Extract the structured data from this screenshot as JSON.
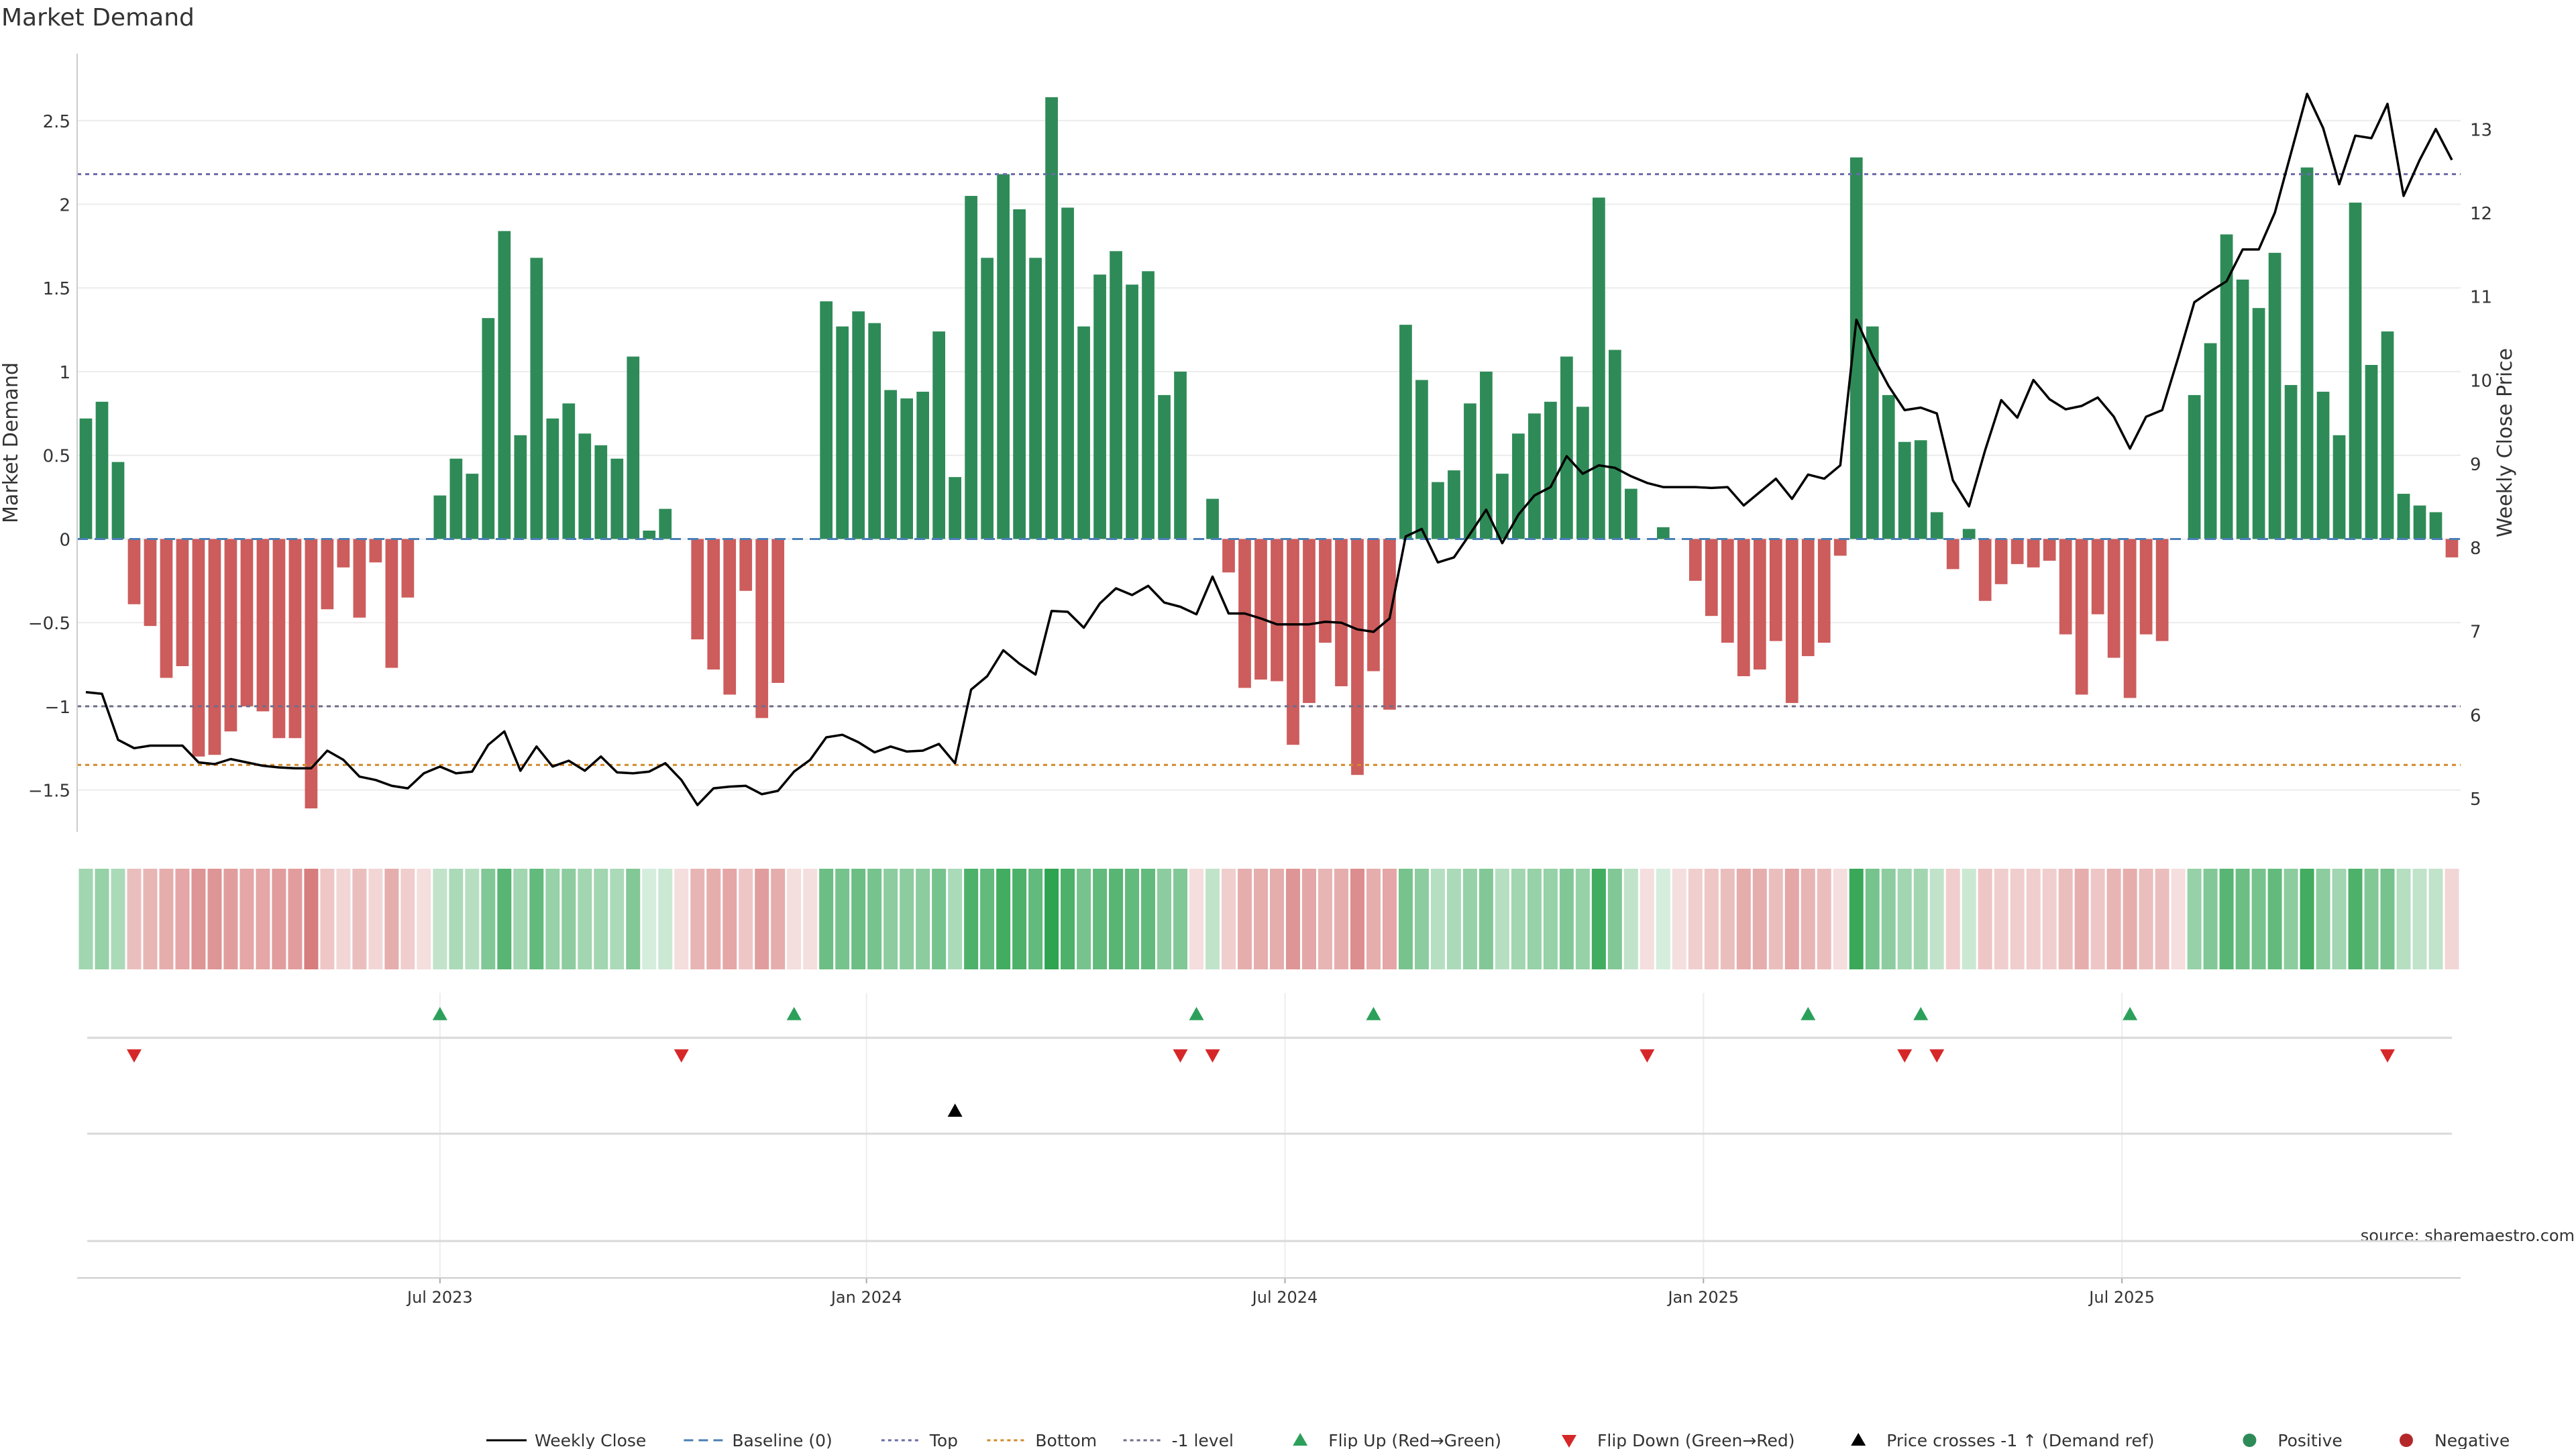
{
  "chart_data": {
    "type": "bar",
    "title": "Market Demand",
    "ylabel_left": "Market Demand",
    "ylabel_right": "Weekly Close Price",
    "ylim_left": [
      -1.75,
      2.9
    ],
    "ylim_right": [
      4.6,
      13.9
    ],
    "yticks_left": [
      "2.5",
      "2",
      "1.5",
      "1",
      "0.5",
      "0",
      "−0.5",
      "−1",
      "−1.5"
    ],
    "yticks_left_values": [
      2.5,
      2,
      1.5,
      1,
      0.5,
      0,
      -0.5,
      -1,
      -1.5
    ],
    "yticks_right": [
      "13",
      "12",
      "11",
      "10",
      "9",
      "8",
      "7",
      "6",
      "5"
    ],
    "yticks_right_values": [
      13,
      12,
      11,
      10,
      9,
      8,
      7,
      6,
      5
    ],
    "reference_lines": {
      "top": 2.18,
      "bottom": -1.35,
      "minus_one": -1.0
    },
    "x_ticks": [
      {
        "label": "Jul 2023",
        "index": 22
      },
      {
        "label": "Jan 2024",
        "index": 48.5
      },
      {
        "label": "Jul 2024",
        "index": 74.5
      },
      {
        "label": "Jan 2025",
        "index": 100.5
      },
      {
        "label": "Jul 2025",
        "index": 126.5
      }
    ],
    "demand": [
      0.72,
      0.82,
      0.46,
      -0.39,
      -0.52,
      -0.83,
      -0.76,
      -1.3,
      -1.29,
      -1.15,
      -1.0,
      -1.03,
      -1.19,
      -1.19,
      -1.61,
      -0.42,
      -0.17,
      -0.47,
      -0.14,
      -0.77,
      -0.35,
      0,
      0.26,
      0.48,
      0.39,
      1.32,
      1.84,
      0.62,
      1.68,
      0.72,
      0.81,
      0.63,
      0.56,
      0.48,
      1.09,
      0.05,
      0.18,
      0,
      -0.6,
      -0.78,
      -0.93,
      -0.31,
      -1.07,
      -0.86,
      0,
      0,
      1.42,
      1.27,
      1.36,
      1.29,
      0.89,
      0.84,
      0.88,
      1.24,
      0.37,
      2.05,
      1.68,
      2.18,
      1.97,
      1.68,
      2.64,
      1.98,
      1.27,
      1.58,
      1.72,
      1.52,
      1.6,
      0.86,
      1.0,
      0,
      0.24,
      -0.2,
      -0.89,
      -0.84,
      -0.85,
      -1.23,
      -0.98,
      -0.62,
      -0.88,
      -1.41,
      -0.79,
      -1.02,
      1.28,
      0.95,
      0.34,
      0.41,
      0.81,
      1.0,
      0.39,
      0.63,
      0.75,
      0.82,
      1.09,
      0.79,
      2.04,
      1.13,
      0.3,
      0,
      0.07,
      0,
      -0.25,
      -0.46,
      -0.62,
      -0.82,
      -0.78,
      -0.61,
      -0.98,
      -0.7,
      -0.62,
      -0.1,
      2.28,
      1.27,
      0.86,
      0.58,
      0.59,
      0.16,
      -0.18,
      0.06,
      -0.37,
      -0.27,
      -0.15,
      -0.17,
      -0.13,
      -0.57,
      -0.93,
      -0.45,
      -0.71,
      -0.95,
      -0.57,
      -0.61,
      0,
      0.86,
      1.17,
      1.82,
      1.55,
      1.38,
      1.71,
      0.92,
      2.22,
      0.88,
      0.62,
      2.01,
      1.04,
      1.24,
      0.27,
      0.2,
      0.16,
      -0.11
    ],
    "price": [
      6.27,
      6.25,
      5.7,
      5.6,
      5.63,
      5.63,
      5.63,
      5.43,
      5.41,
      5.47,
      5.43,
      5.39,
      5.37,
      5.36,
      5.36,
      5.57,
      5.46,
      5.26,
      5.22,
      5.15,
      5.12,
      5.3,
      5.38,
      5.3,
      5.32,
      5.64,
      5.8,
      5.33,
      5.62,
      5.38,
      5.45,
      5.33,
      5.5,
      5.31,
      5.3,
      5.32,
      5.42,
      5.22,
      4.92,
      5.12,
      5.14,
      5.15,
      5.05,
      5.09,
      5.32,
      5.46,
      5.73,
      5.76,
      5.67,
      5.55,
      5.62,
      5.56,
      5.57,
      5.65,
      5.42,
      6.3,
      6.46,
      6.77,
      6.61,
      6.48,
      7.24,
      7.23,
      7.04,
      7.33,
      7.51,
      7.43,
      7.54,
      7.34,
      7.29,
      7.2,
      7.65,
      7.21,
      7.21,
      7.15,
      7.08,
      7.08,
      7.08,
      7.11,
      7.1,
      7.02,
      6.99,
      7.15,
      8.13,
      8.22,
      7.82,
      7.88,
      8.16,
      8.45,
      8.05,
      8.39,
      8.62,
      8.72,
      9.09,
      8.88,
      8.98,
      8.95,
      8.85,
      8.77,
      8.72,
      8.72,
      8.72,
      8.71,
      8.72,
      8.5,
      8.66,
      8.82,
      8.58,
      8.87,
      8.82,
      8.98,
      10.72,
      10.29,
      9.93,
      9.64,
      9.67,
      9.6,
      8.8,
      8.49,
      9.16,
      9.76,
      9.55,
      10.0,
      9.77,
      9.65,
      9.69,
      9.79,
      9.56,
      9.18,
      9.56,
      9.64,
      10.27,
      10.93,
      11.06,
      11.18,
      11.56,
      11.56,
      12.0,
      12.71,
      13.42,
      13.01,
      12.34,
      12.92,
      12.89,
      13.3,
      12.2,
      12.63,
      13.0,
      12.63
    ],
    "heat_alpha": [
      0.45,
      0.5,
      0.4,
      0.4,
      0.45,
      0.5,
      0.55,
      0.65,
      0.65,
      0.6,
      0.55,
      0.55,
      0.6,
      0.6,
      0.8,
      0.35,
      0.25,
      0.4,
      0.25,
      0.5,
      0.3,
      0.2,
      0.3,
      0.4,
      0.35,
      0.6,
      0.8,
      0.45,
      0.75,
      0.5,
      0.55,
      0.45,
      0.45,
      0.4,
      0.6,
      0.2,
      0.25,
      0.2,
      0.45,
      0.5,
      0.55,
      0.35,
      0.6,
      0.5,
      0.2,
      0.2,
      0.7,
      0.65,
      0.7,
      0.65,
      0.55,
      0.55,
      0.55,
      0.65,
      0.4,
      0.85,
      0.75,
      0.9,
      0.85,
      0.75,
      1.0,
      0.85,
      0.65,
      0.75,
      0.8,
      0.75,
      0.75,
      0.55,
      0.6,
      0.2,
      0.3,
      0.3,
      0.5,
      0.5,
      0.5,
      0.65,
      0.55,
      0.45,
      0.5,
      0.7,
      0.5,
      0.55,
      0.65,
      0.55,
      0.35,
      0.4,
      0.5,
      0.6,
      0.35,
      0.45,
      0.5,
      0.5,
      0.6,
      0.5,
      0.9,
      0.6,
      0.3,
      0.2,
      0.2,
      0.2,
      0.3,
      0.35,
      0.4,
      0.5,
      0.5,
      0.4,
      0.55,
      0.45,
      0.4,
      0.2,
      0.95,
      0.65,
      0.55,
      0.45,
      0.45,
      0.3,
      0.3,
      0.25,
      0.35,
      0.3,
      0.3,
      0.3,
      0.3,
      0.4,
      0.5,
      0.35,
      0.45,
      0.5,
      0.4,
      0.4,
      0.2,
      0.5,
      0.6,
      0.8,
      0.7,
      0.65,
      0.75,
      0.55,
      0.9,
      0.55,
      0.45,
      0.85,
      0.6,
      0.65,
      0.35,
      0.3,
      0.3,
      0.25
    ],
    "flip_up": [
      22,
      44,
      69,
      80,
      107,
      114,
      127
    ],
    "flip_down": [
      3,
      37,
      68,
      70,
      97,
      113,
      115,
      143
    ],
    "price_cross": [
      54
    ],
    "source": "source: sharemaestro.com",
    "legend": [
      {
        "label": "Weekly Close",
        "kind": "line",
        "color": "#000000"
      },
      {
        "label": "Baseline (0)",
        "kind": "dash",
        "color": "#4a7fb5"
      },
      {
        "label": "Top",
        "kind": "dot",
        "color": "#6a6aa8"
      },
      {
        "label": "Bottom",
        "kind": "dot",
        "color": "#d08a2a"
      },
      {
        "label": "-1 level",
        "kind": "dot",
        "color": "#6e6e8a"
      },
      {
        "label": "Flip Up (Red→Green)",
        "kind": "tri-up",
        "color": "#2ca05a"
      },
      {
        "label": "Flip Down (Green→Red)",
        "kind": "tri-down",
        "color": "#d62728"
      },
      {
        "label": "Price crosses -1 ↑ (Demand ref)",
        "kind": "tri-up",
        "color": "#000000"
      },
      {
        "label": "Positive",
        "kind": "circle",
        "color": "#2e8b57"
      },
      {
        "label": "Negative",
        "kind": "circle",
        "color": "#b5282a"
      }
    ],
    "colors": {
      "positive": "#2e8b57",
      "negative": "#cd5c5c",
      "heat_pos": "#2ea350",
      "heat_neg": "#cd5c5c",
      "flip_up": "#2ca05a",
      "flip_down": "#d62728"
    }
  }
}
